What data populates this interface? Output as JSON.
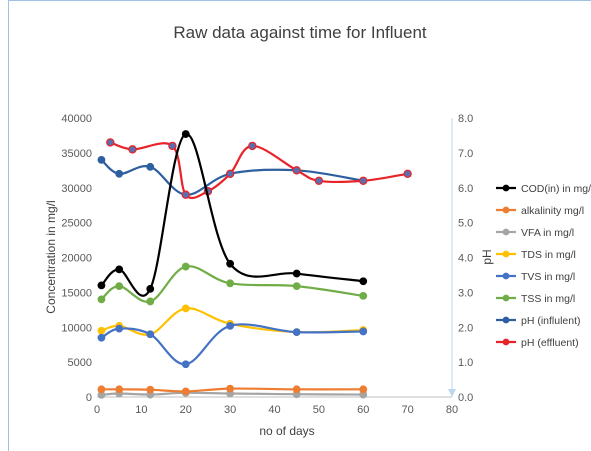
{
  "chart_data": {
    "type": "line",
    "title": "Raw data against time for Influent",
    "xlabel": "no of days",
    "ylabel": "Concentration in mg/l",
    "y2label": "pH",
    "xlim": [
      0,
      80
    ],
    "ylim": [
      0,
      40000
    ],
    "y2lim": [
      0.0,
      8.0
    ],
    "x_ticks": [
      "0",
      "10",
      "20",
      "30",
      "40",
      "50",
      "60",
      "70",
      "80"
    ],
    "y_ticks": [
      "0",
      "5000",
      "10000",
      "15000",
      "20000",
      "25000",
      "30000",
      "35000",
      "40000"
    ],
    "y2_ticks": [
      "0.0",
      "1.0",
      "2.0",
      "3.0",
      "4.0",
      "5.0",
      "6.0",
      "7.0",
      "8.0"
    ],
    "grid": false,
    "legend_position": "right",
    "series": [
      {
        "name": "COD(in)  in mg/",
        "axis": "left",
        "color": "#000000",
        "points": [
          [
            1,
            16000
          ],
          [
            5,
            18300
          ],
          [
            12,
            15500
          ],
          [
            20,
            37700
          ],
          [
            30,
            19100
          ],
          [
            45,
            17700
          ],
          [
            60,
            16600
          ]
        ]
      },
      {
        "name": "alkalinity mg/l",
        "axis": "left",
        "color": "#ed7d31",
        "points": [
          [
            1,
            1100
          ],
          [
            5,
            1100
          ],
          [
            12,
            1050
          ],
          [
            20,
            800
          ],
          [
            30,
            1200
          ],
          [
            45,
            1100
          ],
          [
            60,
            1100
          ]
        ]
      },
      {
        "name": "VFA in mg/l",
        "axis": "left",
        "color": "#a5a5a5",
        "points": [
          [
            1,
            300
          ],
          [
            5,
            500
          ],
          [
            12,
            350
          ],
          [
            20,
            600
          ],
          [
            30,
            500
          ],
          [
            45,
            400
          ],
          [
            60,
            350
          ]
        ]
      },
      {
        "name": "TDS in mg/l",
        "axis": "left",
        "color": "#ffc000",
        "points": [
          [
            1,
            9500
          ],
          [
            5,
            10200
          ],
          [
            12,
            9000
          ],
          [
            20,
            12700
          ],
          [
            30,
            10500
          ],
          [
            45,
            9300
          ],
          [
            60,
            9600
          ]
        ]
      },
      {
        "name": "TVS in mg/l",
        "axis": "left",
        "color": "#4472c4",
        "points": [
          [
            1,
            8500
          ],
          [
            5,
            9800
          ],
          [
            12,
            9000
          ],
          [
            20,
            4700
          ],
          [
            30,
            10200
          ],
          [
            45,
            9300
          ],
          [
            60,
            9400
          ]
        ]
      },
      {
        "name": "TSS in mg/l",
        "axis": "left",
        "color": "#70ad47",
        "points": [
          [
            1,
            14000
          ],
          [
            5,
            15900
          ],
          [
            12,
            13700
          ],
          [
            20,
            18700
          ],
          [
            30,
            16300
          ],
          [
            45,
            15900
          ],
          [
            60,
            14500
          ]
        ]
      },
      {
        "name": "pH (influlent)",
        "axis": "right",
        "color": "#2e5f9f",
        "points": [
          [
            1,
            6.8
          ],
          [
            5,
            6.4
          ],
          [
            12,
            6.6
          ],
          [
            20,
            5.8
          ],
          [
            30,
            6.4
          ],
          [
            45,
            6.5
          ],
          [
            60,
            6.2
          ]
        ]
      },
      {
        "name": "pH (effluent)",
        "axis": "right",
        "color": "#e8232a",
        "points": [
          [
            3,
            7.3
          ],
          [
            8,
            7.1
          ],
          [
            17,
            7.2
          ],
          [
            20,
            5.8
          ],
          [
            25,
            5.9
          ],
          [
            30,
            6.4
          ],
          [
            35,
            7.2
          ],
          [
            45,
            6.5
          ],
          [
            50,
            6.2
          ],
          [
            60,
            6.2
          ],
          [
            70,
            6.4
          ]
        ]
      }
    ]
  }
}
